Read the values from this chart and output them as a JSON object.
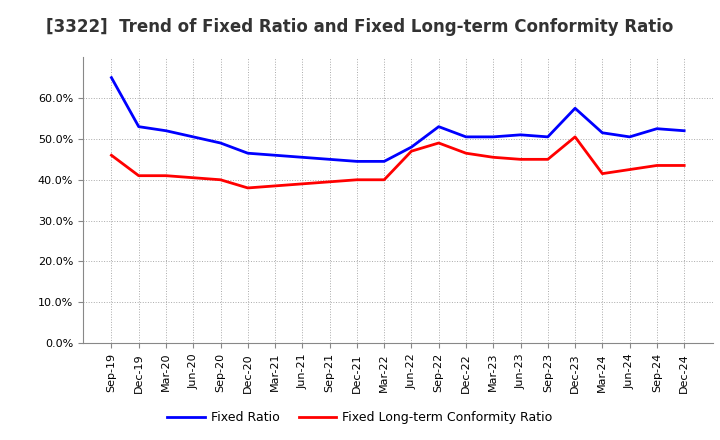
{
  "title": "[3322]  Trend of Fixed Ratio and Fixed Long-term Conformity Ratio",
  "x_labels": [
    "Sep-19",
    "Dec-19",
    "Mar-20",
    "Jun-20",
    "Sep-20",
    "Dec-20",
    "Mar-21",
    "Jun-21",
    "Sep-21",
    "Dec-21",
    "Mar-22",
    "Jun-22",
    "Sep-22",
    "Dec-22",
    "Mar-23",
    "Jun-23",
    "Sep-23",
    "Dec-23",
    "Mar-24",
    "Jun-24",
    "Sep-24",
    "Dec-24"
  ],
  "fixed_ratio": [
    65.0,
    53.0,
    52.0,
    50.5,
    49.0,
    46.5,
    46.0,
    45.5,
    45.0,
    44.5,
    44.5,
    48.0,
    53.0,
    50.5,
    50.5,
    51.0,
    50.5,
    57.5,
    51.5,
    50.5,
    52.5,
    52.0
  ],
  "fixed_lt_ratio": [
    46.0,
    41.0,
    41.0,
    40.5,
    40.0,
    38.0,
    38.5,
    39.0,
    39.5,
    40.0,
    40.0,
    47.0,
    49.0,
    46.5,
    45.5,
    45.0,
    45.0,
    50.5,
    41.5,
    42.5,
    43.5,
    43.5
  ],
  "fixed_ratio_color": "#0000FF",
  "fixed_lt_ratio_color": "#FF0000",
  "ylim": [
    0,
    70
  ],
  "yticks": [
    0.0,
    10.0,
    20.0,
    30.0,
    40.0,
    50.0,
    60.0
  ],
  "background_color": "#FFFFFF",
  "plot_bg_color": "#FFFFFF",
  "grid_color": "#AAAAAA",
  "legend_fixed_ratio": "Fixed Ratio",
  "legend_fixed_lt_ratio": "Fixed Long-term Conformity Ratio",
  "title_fontsize": 12,
  "tick_fontsize": 8,
  "legend_fontsize": 9
}
